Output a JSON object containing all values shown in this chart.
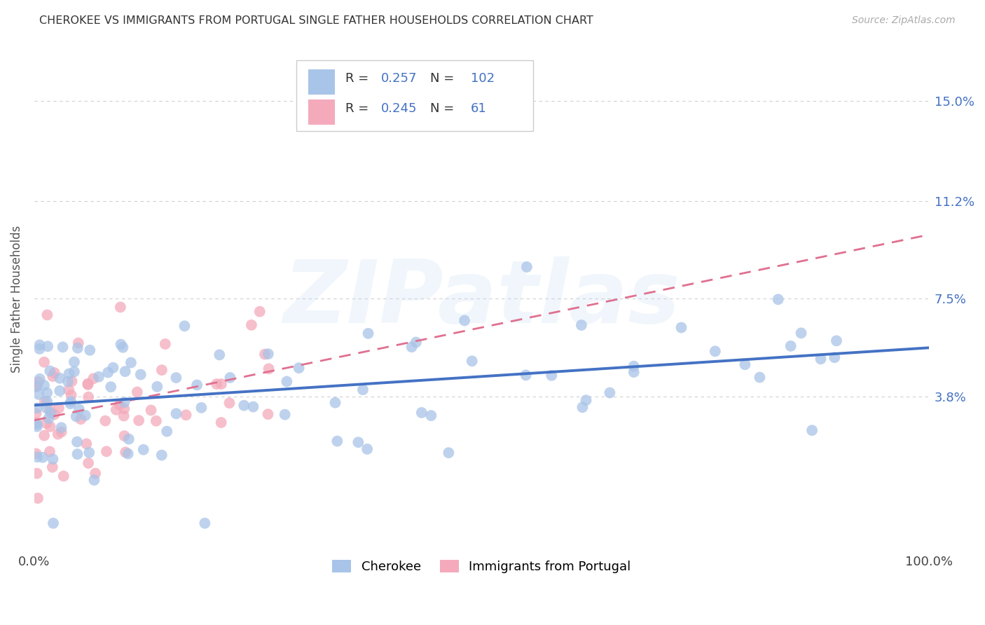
{
  "title": "CHEROKEE VS IMMIGRANTS FROM PORTUGAL SINGLE FATHER HOUSEHOLDS CORRELATION CHART",
  "source": "Source: ZipAtlas.com",
  "ylabel": "Single Father Households",
  "cherokee_color": "#a8c4e8",
  "portugal_color": "#f4aabb",
  "cherokee_line_color": "#4472c4",
  "portugal_line_color": "#e07090",
  "R_cherokee": 0.257,
  "N_cherokee": 102,
  "R_portugal": 0.245,
  "N_portugal": 61,
  "legend_label_cherokee": "Cherokee",
  "legend_label_portugal": "Immigrants from Portugal",
  "watermark_text": "ZIPatlas",
  "background_color": "#ffffff",
  "grid_color": "#d0d0d0",
  "title_color": "#333333",
  "xlim": [
    0,
    100
  ],
  "ylim": [
    -2.0,
    17.0
  ],
  "ytick_vals": [
    3.8,
    7.5,
    11.2,
    15.0
  ],
  "yticklabels_right": [
    "3.8%",
    "7.5%",
    "11.2%",
    "15.0%"
  ],
  "xtick_vals": [
    0,
    100
  ],
  "xticklabels": [
    "0.0%",
    "100.0%"
  ],
  "cherokee_seed": 99,
  "portugal_seed": 55,
  "cherokee_intercept": 3.1,
  "cherokee_slope": 0.033,
  "cherokee_noise": 1.6,
  "portugal_intercept": 3.0,
  "portugal_slope": 0.06,
  "portugal_noise": 1.4
}
